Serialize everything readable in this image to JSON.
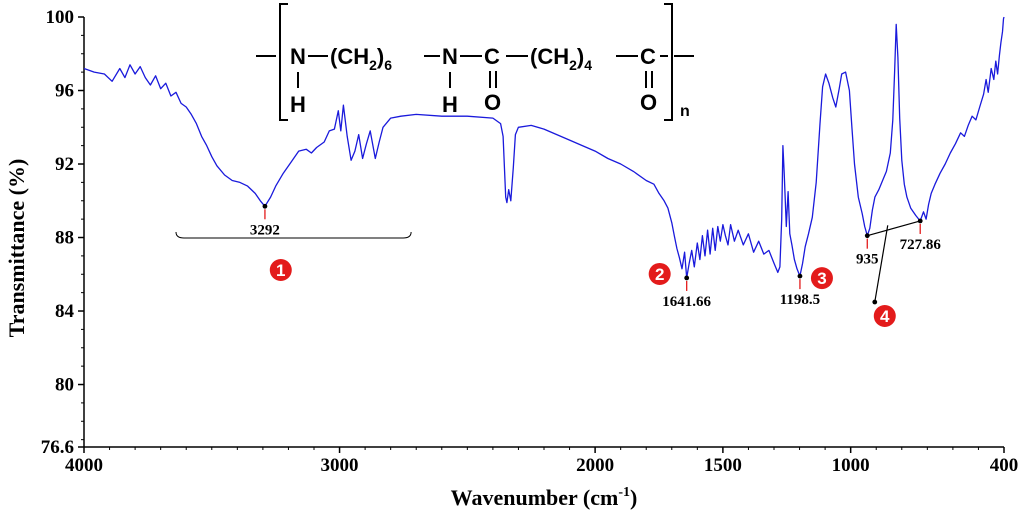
{
  "chart_data": {
    "type": "line",
    "title": "",
    "xlabel": "Wavenumber (cm",
    "xlabel_sup": "-1",
    "xlabel_close": ")",
    "ylabel": "Transmittance (%)",
    "xlim": [
      4000,
      400
    ],
    "ylim": [
      76.6,
      100
    ],
    "x_ticks": [
      4000,
      3000,
      2000,
      1500,
      1000,
      400
    ],
    "y_ticks": [
      "100",
      "96",
      "92",
      "88",
      "84",
      "80",
      "76.6"
    ],
    "y_tick_values": [
      100,
      96,
      92,
      88,
      84,
      80,
      76.6
    ],
    "grid": false,
    "line_color": "#1a1adc",
    "series": [
      {
        "points": [
          [
            4000,
            97.2
          ],
          [
            3960,
            97.0
          ],
          [
            3920,
            96.9
          ],
          [
            3890,
            96.5
          ],
          [
            3860,
            97.2
          ],
          [
            3840,
            96.7
          ],
          [
            3820,
            97.4
          ],
          [
            3800,
            96.9
          ],
          [
            3780,
            97.3
          ],
          [
            3760,
            96.7
          ],
          [
            3740,
            96.3
          ],
          [
            3720,
            96.8
          ],
          [
            3700,
            96.1
          ],
          [
            3680,
            96.4
          ],
          [
            3660,
            95.7
          ],
          [
            3640,
            95.9
          ],
          [
            3620,
            95.3
          ],
          [
            3600,
            95.1
          ],
          [
            3580,
            94.7
          ],
          [
            3560,
            94.2
          ],
          [
            3540,
            93.5
          ],
          [
            3520,
            93.0
          ],
          [
            3500,
            92.4
          ],
          [
            3480,
            91.9
          ],
          [
            3450,
            91.4
          ],
          [
            3420,
            91.1
          ],
          [
            3390,
            91.0
          ],
          [
            3360,
            90.8
          ],
          [
            3330,
            90.4
          ],
          [
            3310,
            90.0
          ],
          [
            3292,
            89.7
          ],
          [
            3270,
            90.2
          ],
          [
            3250,
            90.8
          ],
          [
            3220,
            91.5
          ],
          [
            3190,
            92.1
          ],
          [
            3160,
            92.7
          ],
          [
            3130,
            92.8
          ],
          [
            3110,
            92.6
          ],
          [
            3090,
            92.9
          ],
          [
            3060,
            93.2
          ],
          [
            3040,
            93.8
          ],
          [
            3020,
            93.9
          ],
          [
            3005,
            94.9
          ],
          [
            2995,
            93.8
          ],
          [
            2985,
            95.2
          ],
          [
            2970,
            93.5
          ],
          [
            2955,
            92.2
          ],
          [
            2940,
            92.7
          ],
          [
            2925,
            93.6
          ],
          [
            2910,
            92.3
          ],
          [
            2895,
            93.1
          ],
          [
            2880,
            93.8
          ],
          [
            2860,
            92.3
          ],
          [
            2845,
            93.2
          ],
          [
            2830,
            94.0
          ],
          [
            2800,
            94.5
          ],
          [
            2760,
            94.6
          ],
          [
            2700,
            94.7
          ],
          [
            2600,
            94.6
          ],
          [
            2500,
            94.6
          ],
          [
            2400,
            94.5
          ],
          [
            2370,
            94.2
          ],
          [
            2360,
            93.5
          ],
          [
            2350,
            90.2
          ],
          [
            2345,
            89.9
          ],
          [
            2338,
            90.6
          ],
          [
            2330,
            90.0
          ],
          [
            2320,
            91.8
          ],
          [
            2312,
            93.6
          ],
          [
            2300,
            94.0
          ],
          [
            2250,
            94.1
          ],
          [
            2200,
            93.9
          ],
          [
            2150,
            93.6
          ],
          [
            2100,
            93.3
          ],
          [
            2050,
            93.0
          ],
          [
            2000,
            92.7
          ],
          [
            1950,
            92.3
          ],
          [
            1900,
            92.0
          ],
          [
            1850,
            91.6
          ],
          [
            1800,
            91.1
          ],
          [
            1770,
            90.9
          ],
          [
            1750,
            90.4
          ],
          [
            1730,
            90.0
          ],
          [
            1715,
            89.6
          ],
          [
            1700,
            88.8
          ],
          [
            1690,
            88.1
          ],
          [
            1680,
            87.4
          ],
          [
            1670,
            86.9
          ],
          [
            1660,
            86.3
          ],
          [
            1650,
            87.2
          ],
          [
            1641.66,
            85.8
          ],
          [
            1632,
            86.6
          ],
          [
            1622,
            87.3
          ],
          [
            1612,
            86.4
          ],
          [
            1600,
            87.7
          ],
          [
            1590,
            86.8
          ],
          [
            1580,
            88.1
          ],
          [
            1570,
            87.0
          ],
          [
            1560,
            88.4
          ],
          [
            1550,
            87.1
          ],
          [
            1540,
            88.5
          ],
          [
            1530,
            87.3
          ],
          [
            1520,
            88.6
          ],
          [
            1510,
            87.8
          ],
          [
            1500,
            88.7
          ],
          [
            1490,
            88.1
          ],
          [
            1480,
            87.6
          ],
          [
            1470,
            88.7
          ],
          [
            1455,
            87.8
          ],
          [
            1440,
            88.4
          ],
          [
            1420,
            87.6
          ],
          [
            1400,
            88.2
          ],
          [
            1380,
            87.2
          ],
          [
            1360,
            87.8
          ],
          [
            1340,
            87.1
          ],
          [
            1320,
            87.3
          ],
          [
            1300,
            86.6
          ],
          [
            1285,
            86.1
          ],
          [
            1277,
            86.4
          ],
          [
            1270,
            89.0
          ],
          [
            1265,
            93.0
          ],
          [
            1260,
            91.5
          ],
          [
            1252,
            88.6
          ],
          [
            1245,
            90.5
          ],
          [
            1238,
            88.2
          ],
          [
            1230,
            87.6
          ],
          [
            1220,
            86.8
          ],
          [
            1210,
            86.3
          ],
          [
            1198.5,
            85.9
          ],
          [
            1188,
            86.6
          ],
          [
            1178,
            87.5
          ],
          [
            1165,
            88.2
          ],
          [
            1150,
            89.1
          ],
          [
            1135,
            91.0
          ],
          [
            1120,
            94.2
          ],
          [
            1110,
            96.2
          ],
          [
            1098,
            96.9
          ],
          [
            1085,
            96.4
          ],
          [
            1070,
            95.6
          ],
          [
            1058,
            95.1
          ],
          [
            1045,
            96.1
          ],
          [
            1035,
            96.9
          ],
          [
            1020,
            97.0
          ],
          [
            1005,
            96.0
          ],
          [
            995,
            94.0
          ],
          [
            985,
            92.0
          ],
          [
            970,
            90.2
          ],
          [
            955,
            89.3
          ],
          [
            945,
            88.6
          ],
          [
            935,
            88.1
          ],
          [
            925,
            88.5
          ],
          [
            915,
            89.5
          ],
          [
            905,
            90.2
          ],
          [
            890,
            90.6
          ],
          [
            875,
            91.1
          ],
          [
            860,
            91.6
          ],
          [
            845,
            92.6
          ],
          [
            835,
            94.4
          ],
          [
            828,
            97.0
          ],
          [
            822,
            99.6
          ],
          [
            815,
            97.8
          ],
          [
            808,
            94.5
          ],
          [
            800,
            92.2
          ],
          [
            790,
            90.9
          ],
          [
            780,
            90.2
          ],
          [
            765,
            89.6
          ],
          [
            745,
            89.2
          ],
          [
            727.86,
            88.9
          ],
          [
            715,
            89.4
          ],
          [
            705,
            89.0
          ],
          [
            695,
            89.8
          ],
          [
            685,
            90.4
          ],
          [
            670,
            90.9
          ],
          [
            650,
            91.5
          ],
          [
            630,
            92.0
          ],
          [
            610,
            92.6
          ],
          [
            590,
            93.1
          ],
          [
            570,
            93.7
          ],
          [
            555,
            93.5
          ],
          [
            540,
            94.1
          ],
          [
            525,
            94.6
          ],
          [
            510,
            94.4
          ],
          [
            495,
            95.1
          ],
          [
            480,
            95.8
          ],
          [
            470,
            96.6
          ],
          [
            462,
            95.9
          ],
          [
            450,
            97.2
          ],
          [
            440,
            96.6
          ],
          [
            432,
            97.6
          ],
          [
            425,
            96.9
          ],
          [
            418,
            97.9
          ],
          [
            412,
            98.6
          ],
          [
            406,
            99.2
          ],
          [
            402,
            99.9
          ],
          [
            400,
            100.0
          ]
        ]
      }
    ],
    "annotations": [
      {
        "x": 3292,
        "y": 89.7,
        "label": "3292",
        "badge": "1"
      },
      {
        "x": 1641.66,
        "y": 85.8,
        "label": "1641.66",
        "badge": "2"
      },
      {
        "x": 1198.5,
        "y": 85.9,
        "label": "1198.5",
        "badge": "3"
      },
      {
        "x": 935,
        "y": 88.1,
        "label": "935",
        "badge": "4"
      },
      {
        "x": 727.86,
        "y": 88.9,
        "label": "727.86",
        "badge": "4"
      }
    ],
    "badge_color": "#e31b1b",
    "marker_color": "#e31b1b"
  },
  "structure": {
    "n1": "N",
    "h1": "H",
    "ch2_a": "(CH",
    "sub_a": "2",
    "close_a": ")",
    "count_a": "6",
    "n2": "N",
    "h2": "H",
    "c1": "C",
    "o1": "O",
    "ch2_b": "(CH",
    "sub_b": "2",
    "close_b": ")",
    "count_b": "4",
    "c2": "C",
    "o2": "O",
    "repeat": "n"
  },
  "badges": {
    "b1": "1",
    "b2": "2",
    "b3": "3",
    "b4": "4"
  }
}
